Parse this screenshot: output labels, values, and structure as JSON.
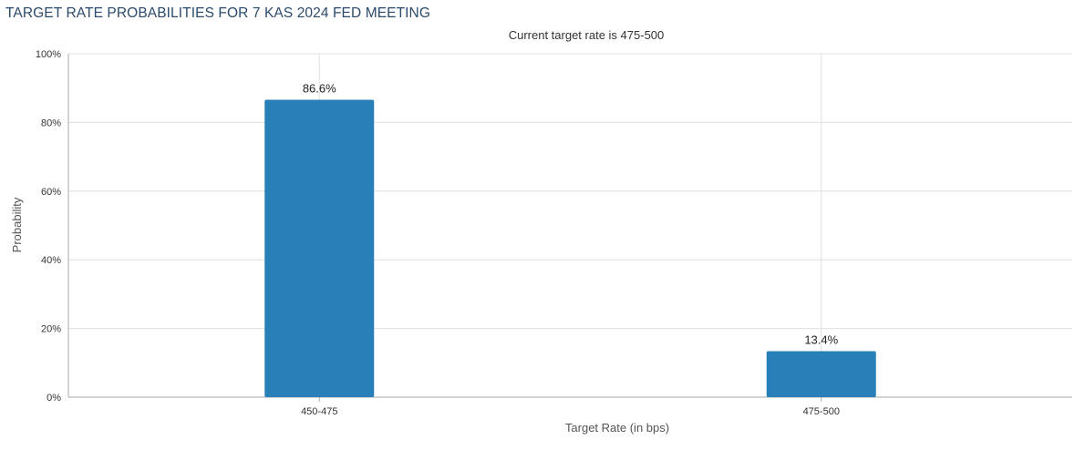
{
  "chart_data": {
    "type": "bar",
    "title": "TARGET RATE PROBABILITIES FOR 7 KAS 2024 FED MEETING",
    "subtitle": "Current target rate is 475-500",
    "xlabel": "Target Rate (in bps)",
    "ylabel": "Probability",
    "categories": [
      "450-475",
      "475-500"
    ],
    "values": [
      86.6,
      13.4
    ],
    "data_labels": [
      "86.6%",
      "13.4%"
    ],
    "ylim": [
      0,
      100
    ],
    "yticks": [
      0,
      20,
      40,
      60,
      80,
      100
    ],
    "ytick_labels": [
      "0%",
      "20%",
      "40%",
      "60%",
      "80%",
      "100%"
    ],
    "grid": true,
    "legend": "none",
    "colors": {
      "bar": "#2980b9",
      "grid": "#e0e0e0",
      "axis": "#aaaaaa",
      "title": "#2b4a6b"
    }
  }
}
